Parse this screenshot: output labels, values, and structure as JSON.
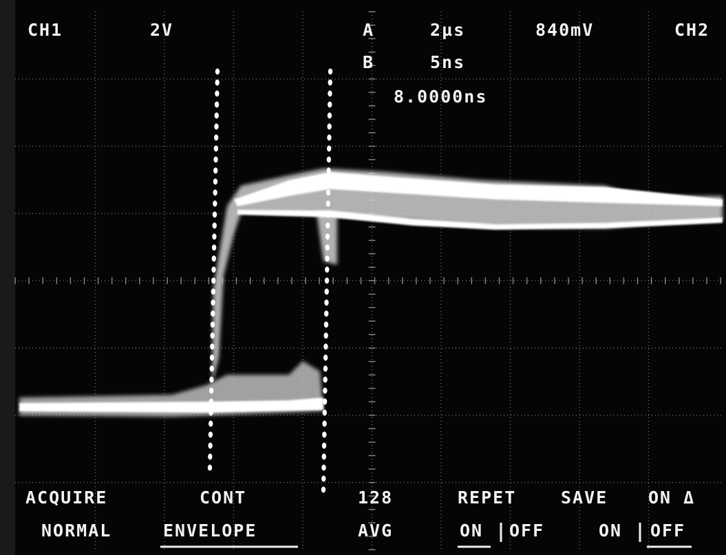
{
  "header": {
    "row1": {
      "ch1": "CH1",
      "ch1_scale": "2V",
      "timebase_a_label": "A",
      "timebase_a": "2µs",
      "trigger_level": "840mV",
      "ch2": "CH2"
    },
    "row2": {
      "timebase_b_label": "B",
      "timebase_b": "5ns"
    },
    "row3": {
      "delta_time": "8.0000ns"
    }
  },
  "menu": {
    "acquire": {
      "top": "ACQUIRE",
      "bottom": "NORMAL"
    },
    "mode": {
      "top": "CONT",
      "bottom": "ENVELOPE"
    },
    "average": {
      "top": "128",
      "bottom": "AVG"
    },
    "repet": {
      "top": "REPET",
      "on": "ON",
      "off": "OFF"
    },
    "save": {
      "top": "SAVE",
      "on": "ON",
      "off": "OFF"
    },
    "delta": {
      "top": "ON Δ"
    }
  }
}
